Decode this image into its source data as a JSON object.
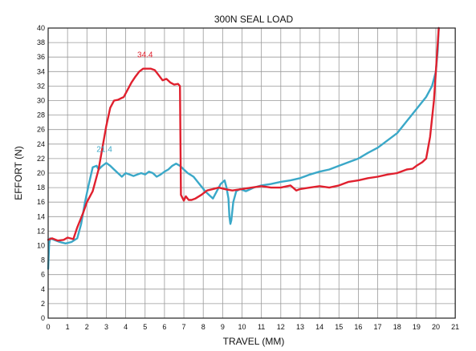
{
  "chart_data": {
    "type": "line",
    "title": "300N SEAL LOAD",
    "xlabel": "TRAVEL (MM)",
    "ylabel": "EFFORT (N)",
    "xlim": [
      0,
      21
    ],
    "ylim": [
      0,
      40
    ],
    "x_ticks": [
      0,
      1,
      2,
      3,
      4,
      5,
      6,
      7,
      8,
      9,
      10,
      11,
      12,
      13,
      14,
      15,
      16,
      17,
      18,
      19,
      20,
      21
    ],
    "y_ticks": [
      0,
      2,
      4,
      6,
      8,
      10,
      12,
      14,
      16,
      18,
      20,
      22,
      24,
      26,
      28,
      30,
      32,
      34,
      36,
      38,
      40
    ],
    "grid": true,
    "annotations": [
      {
        "text": "34.4",
        "x": 5.0,
        "y": 34.4,
        "color": "#e0202e"
      },
      {
        "text": "21.4",
        "x": 2.9,
        "y": 21.4,
        "color": "#3aa8c8"
      }
    ],
    "series": [
      {
        "color": "#e0202e",
        "x": [
          0,
          0.2,
          0.5,
          0.8,
          1.0,
          1.3,
          1.5,
          1.8,
          2.0,
          2.3,
          2.6,
          2.8,
          3.0,
          3.2,
          3.4,
          3.6,
          3.9,
          4.1,
          4.3,
          4.5,
          4.7,
          4.9,
          5.1,
          5.3,
          5.5,
          5.7,
          5.9,
          6.1,
          6.3,
          6.5,
          6.7,
          6.8,
          6.85,
          7.0,
          7.1,
          7.25,
          7.4,
          7.6,
          7.9,
          8.2,
          8.5,
          8.8,
          9.1,
          9.5,
          10.0,
          10.5,
          11.0,
          11.5,
          12.0,
          12.5,
          12.8,
          13.0,
          13.5,
          14.0,
          14.5,
          15.0,
          15.5,
          16.0,
          16.5,
          17.0,
          17.5,
          18.0,
          18.5,
          18.8,
          19.0,
          19.3,
          19.5,
          19.7,
          19.9,
          20.0,
          20.1,
          20.15
        ],
        "y": [
          10.8,
          11.0,
          10.7,
          10.8,
          11.1,
          10.9,
          12.5,
          14.5,
          16.0,
          17.5,
          20.5,
          23.5,
          26.5,
          29.0,
          30.0,
          30.1,
          30.5,
          31.5,
          32.5,
          33.3,
          34.0,
          34.4,
          34.4,
          34.4,
          34.2,
          33.5,
          32.8,
          33.0,
          32.5,
          32.2,
          32.3,
          32.0,
          17.0,
          16.2,
          16.8,
          16.3,
          16.3,
          16.5,
          17.0,
          17.6,
          17.8,
          18.0,
          17.8,
          17.6,
          17.8,
          18.0,
          18.2,
          18.0,
          18.0,
          18.3,
          17.6,
          17.8,
          18.0,
          18.2,
          18.0,
          18.3,
          18.8,
          19.0,
          19.3,
          19.5,
          19.8,
          20.0,
          20.5,
          20.6,
          21.0,
          21.5,
          22.0,
          25.0,
          30.0,
          34.0,
          38.0,
          40.0
        ]
      },
      {
        "color": "#3aa8c8",
        "x": [
          0,
          0.05,
          0.1,
          0.3,
          0.6,
          0.9,
          1.2,
          1.5,
          1.7,
          1.9,
          2.1,
          2.3,
          2.5,
          2.6,
          2.8,
          3.0,
          3.2,
          3.4,
          3.6,
          3.8,
          4.0,
          4.2,
          4.4,
          4.6,
          4.8,
          5.0,
          5.2,
          5.4,
          5.6,
          5.8,
          6.0,
          6.2,
          6.4,
          6.6,
          6.8,
          7.0,
          7.2,
          7.5,
          7.8,
          8.1,
          8.3,
          8.5,
          8.7,
          8.9,
          9.1,
          9.2,
          9.3,
          9.35,
          9.4,
          9.45,
          9.55,
          9.7,
          9.9,
          10.2,
          10.6,
          11.0,
          11.5,
          12.0,
          12.5,
          13.0,
          13.5,
          14.0,
          14.5,
          15.0,
          15.5,
          16.0,
          16.5,
          17.0,
          17.5,
          18.0,
          18.3,
          18.6,
          18.9,
          19.2,
          19.5,
          19.8,
          20.0,
          20.1,
          20.15
        ],
        "y": [
          6.8,
          10.2,
          11.0,
          10.8,
          10.5,
          10.3,
          10.5,
          11.0,
          13.0,
          16.0,
          18.5,
          20.8,
          21.0,
          20.5,
          21.0,
          21.4,
          21.0,
          20.5,
          20.0,
          19.5,
          20.0,
          19.8,
          19.6,
          19.8,
          20.0,
          19.8,
          20.2,
          20.0,
          19.5,
          19.8,
          20.2,
          20.5,
          21.0,
          21.3,
          21.0,
          20.5,
          20.0,
          19.5,
          18.5,
          17.5,
          17.0,
          16.5,
          17.5,
          18.5,
          19.0,
          18.0,
          16.5,
          14.0,
          13.0,
          13.5,
          16.0,
          17.5,
          17.8,
          17.5,
          18.0,
          18.3,
          18.5,
          18.8,
          19.0,
          19.3,
          19.8,
          20.2,
          20.5,
          21.0,
          21.5,
          22.0,
          22.8,
          23.5,
          24.5,
          25.5,
          26.5,
          27.5,
          28.5,
          29.5,
          30.5,
          32.0,
          34.0,
          37.0,
          40.0
        ]
      }
    ]
  }
}
